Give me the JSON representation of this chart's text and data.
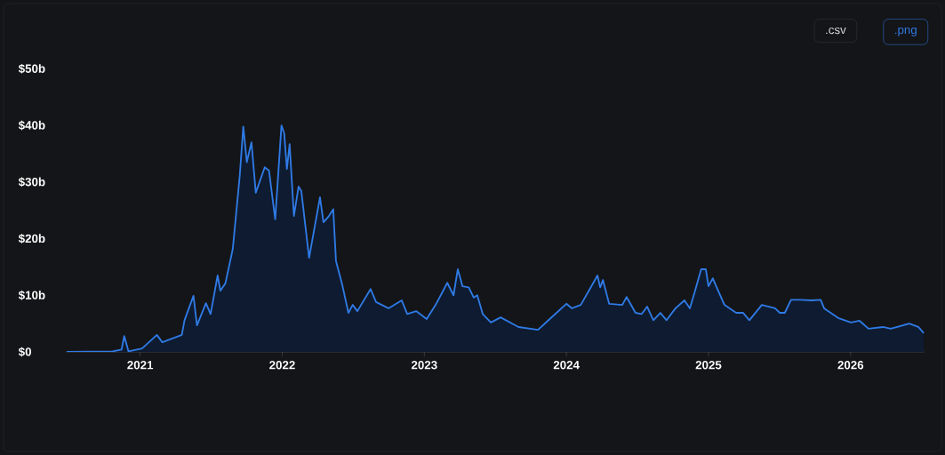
{
  "chart_data": {
    "type": "area",
    "color": "#2f7ae5",
    "x": [
      "2020-06-25",
      "2020-10-22",
      "2020-11-14",
      "2020-11-21",
      "2020-12-02",
      "2021-01-06",
      "2021-02-13",
      "2021-02-27",
      "2021-04-18",
      "2021-04-25",
      "2021-05-18",
      "2021-05-27",
      "2021-06-19",
      "2021-07-01",
      "2021-07-19",
      "2021-07-26",
      "2021-08-08",
      "2021-08-27",
      "2021-09-14",
      "2021-09-23",
      "2021-10-02",
      "2021-10-14",
      "2021-10-25",
      "2021-11-17",
      "2021-11-28",
      "2021-12-14",
      "2021-12-30",
      "2022-01-06",
      "2022-01-13",
      "2022-01-20",
      "2022-01-31",
      "2022-02-12",
      "2022-02-19",
      "2022-03-11",
      "2022-04-08",
      "2022-04-17",
      "2022-05-01",
      "2022-05-12",
      "2022-05-19",
      "2022-06-04",
      "2022-06-20",
      "2022-07-01",
      "2022-07-13",
      "2022-08-16",
      "2022-08-30",
      "2022-10-01",
      "2022-11-04",
      "2022-11-18",
      "2022-12-11",
      "2023-01-07",
      "2023-01-30",
      "2023-03-01",
      "2023-03-17",
      "2023-03-28",
      "2023-04-09",
      "2023-04-25",
      "2023-05-08",
      "2023-05-17",
      "2023-05-31",
      "2023-06-21",
      "2023-07-16",
      "2023-08-31",
      "2023-10-20",
      "2023-11-16",
      "2024-01-01",
      "2024-01-15",
      "2024-02-07",
      "2024-03-21",
      "2024-03-28",
      "2024-04-04",
      "2024-04-20",
      "2024-05-24",
      "2024-06-04",
      "2024-06-27",
      "2024-07-13",
      "2024-07-27",
      "2024-08-12",
      "2024-08-30",
      "2024-09-15",
      "2024-10-08",
      "2024-10-31",
      "2024-11-14",
      "2024-11-27",
      "2024-12-13",
      "2024-12-25",
      "2025-01-01",
      "2025-01-12",
      "2025-01-24",
      "2025-02-11",
      "2025-03-13",
      "2025-03-31",
      "2025-04-16",
      "2025-05-18",
      "2025-06-21",
      "2025-07-03",
      "2025-07-16",
      "2025-08-01",
      "2025-08-24",
      "2025-09-23",
      "2025-10-16",
      "2025-10-25",
      "2025-11-30",
      "2026-01-02",
      "2026-01-24",
      "2026-02-16",
      "2026-03-25",
      "2026-04-14",
      "2026-06-01",
      "2026-06-24",
      "2026-07-08"
    ],
    "values": [
      0,
      0.1,
      0.4,
      2.8,
      0.1,
      0.6,
      3.0,
      1.7,
      3.0,
      5.6,
      9.9,
      4.7,
      8.6,
      6.7,
      13.5,
      10.8,
      12.1,
      18.2,
      31.2,
      39.8,
      33.5,
      37.0,
      28.1,
      32.6,
      32.0,
      23.4,
      40.0,
      38.6,
      32.3,
      36.7,
      24.0,
      29.2,
      28.4,
      16.6,
      27.3,
      22.9,
      24.0,
      25.2,
      16.1,
      11.9,
      6.9,
      8.3,
      7.2,
      11.1,
      8.8,
      7.7,
      9.1,
      6.7,
      7.2,
      5.8,
      8.3,
      12.2,
      10.0,
      14.6,
      11.6,
      11.4,
      9.6,
      10.0,
      6.7,
      5.2,
      6.1,
      4.4,
      3.9,
      5.6,
      8.5,
      7.7,
      8.3,
      13.5,
      11.4,
      12.7,
      8.5,
      8.3,
      9.7,
      6.9,
      6.7,
      8.0,
      5.6,
      6.9,
      5.6,
      7.7,
      9.1,
      7.7,
      10.7,
      14.6,
      14.6,
      11.6,
      13.0,
      11.1,
      8.3,
      6.9,
      6.9,
      5.6,
      8.3,
      7.7,
      6.9,
      6.9,
      9.2,
      9.2,
      9.1,
      9.2,
      7.7,
      6.0,
      5.2,
      5.5,
      4.1,
      4.4,
      4.1,
      5.0,
      4.4,
      3.3
    ],
    "xlim": [
      "2020-06-25",
      "2026-07-10"
    ],
    "xticks": [
      "2021",
      "2022",
      "2023",
      "2024",
      "2025",
      "2026"
    ],
    "ylim": [
      0,
      50
    ],
    "yticks": [
      {
        "value": 0,
        "label": "$0"
      },
      {
        "value": 10,
        "label": "$10b"
      },
      {
        "value": 20,
        "label": "$20b"
      },
      {
        "value": 30,
        "label": "$30b"
      },
      {
        "value": 40,
        "label": "$40b"
      },
      {
        "value": 50,
        "label": "$50b"
      }
    ],
    "annotations": [
      ".csv",
      ".png"
    ]
  }
}
